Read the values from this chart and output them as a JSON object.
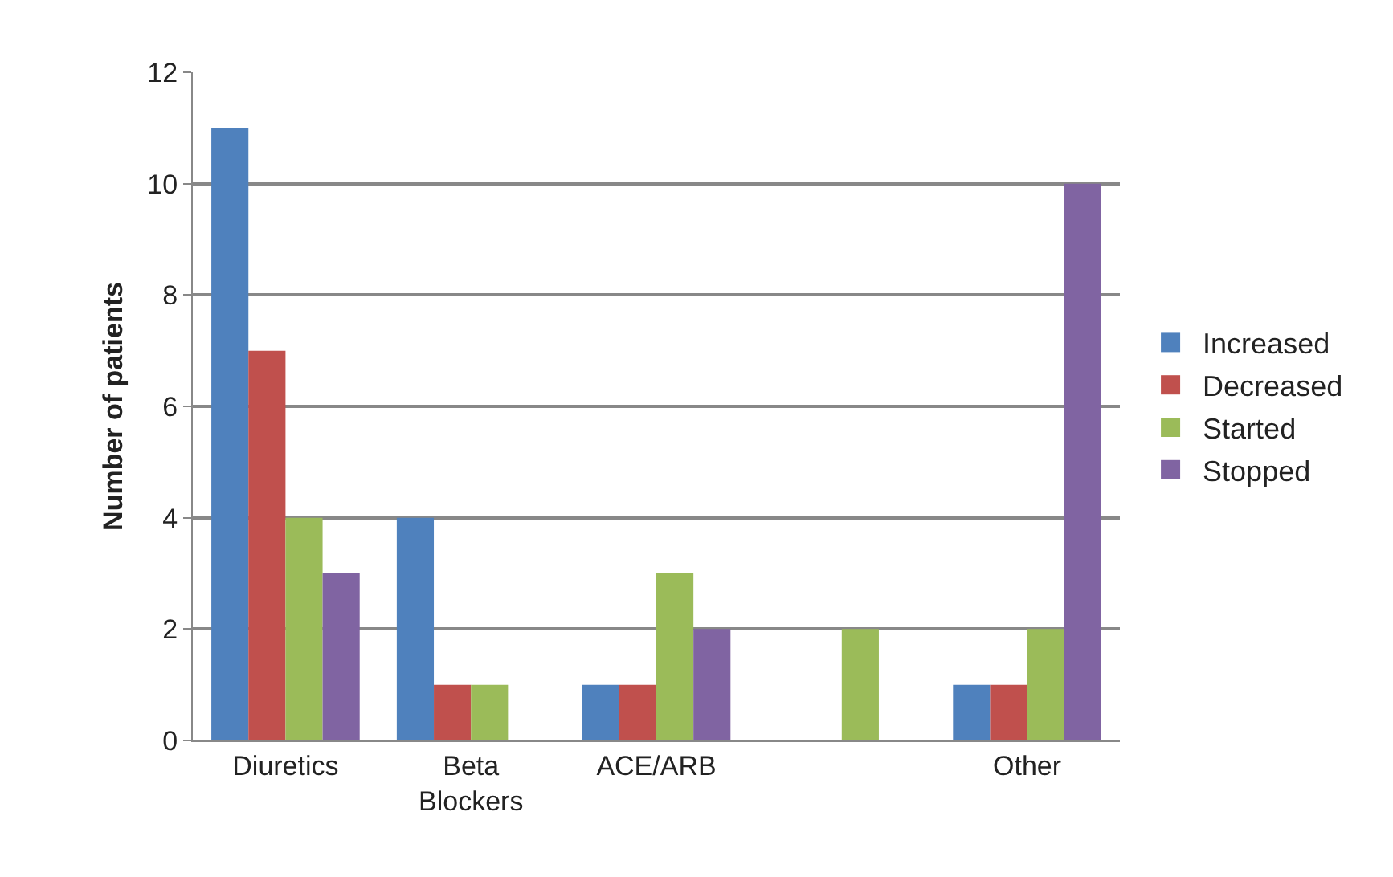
{
  "chart_data": {
    "type": "bar",
    "ylabel": "Number of patients",
    "categories": [
      "Diuretics",
      "Beta Blockers",
      "ACE/ARB",
      null,
      "Other"
    ],
    "series": [
      {
        "name": "Increased",
        "color": "#4f81bd",
        "values": [
          11,
          4,
          1,
          0,
          1
        ]
      },
      {
        "name": "Decreased",
        "color": "#c0504d",
        "values": [
          7,
          1,
          1,
          0,
          1
        ]
      },
      {
        "name": "Started",
        "color": "#9bbb59",
        "values": [
          4,
          1,
          3,
          2,
          2
        ]
      },
      {
        "name": "Stopped",
        "color": "#8064a2",
        "values": [
          3,
          0,
          2,
          0,
          10
        ]
      }
    ],
    "ylim": [
      0,
      12
    ],
    "yticks": [
      0,
      2,
      4,
      6,
      8,
      10,
      12
    ],
    "grid": "y",
    "legend": "right"
  }
}
